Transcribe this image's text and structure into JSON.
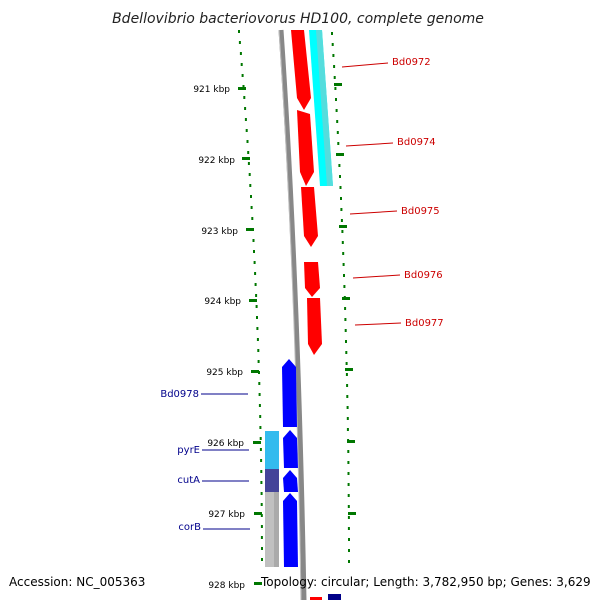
{
  "title": "Bdellovibrio bacteriovorus HD100, complete genome",
  "ticks": [
    "921 kbp",
    "922 kbp",
    "923 kbp",
    "924 kbp",
    "925 kbp",
    "926 kbp",
    "927 kbp",
    "928 kbp"
  ],
  "genes_forward": [
    {
      "label": "Bd0972",
      "color": "#ff0000"
    },
    {
      "label": "Bd0974",
      "color": "#ff0000"
    },
    {
      "label": "Bd0975",
      "color": "#ff0000"
    },
    {
      "label": "Bd0976",
      "color": "#ff0000"
    },
    {
      "label": "Bd0977",
      "color": "#ff0000"
    }
  ],
  "genes_reverse": [
    {
      "label": "Bd0978",
      "color": "#0000ff"
    },
    {
      "label": "pyrE",
      "color": "#0000ff"
    },
    {
      "label": "cutA",
      "color": "#0000ff"
    },
    {
      "label": "corB",
      "color": "#0000ff"
    }
  ],
  "colors": {
    "forward_cds": "#ff0000",
    "reverse_cds": "#0000ff",
    "forward_feature": "#00ffff",
    "reverse_feature_light": "#33bbee",
    "reverse_feature_dark": "#444499",
    "reverse_feature_gray": "#c0c0c0",
    "backbone": "#888888",
    "ruler": "#007700",
    "label_forward": "#cc0000",
    "label_reverse": "#00008b"
  },
  "footer": {
    "accession": "Accession: NC_005363",
    "topology": "Topology: circular; Length: 3,782,950 bp; Genes: 3,629"
  }
}
